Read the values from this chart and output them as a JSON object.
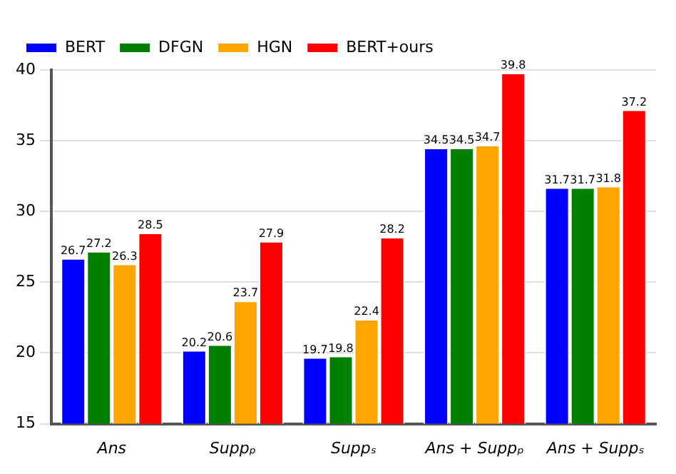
{
  "chart_data": {
    "type": "bar",
    "categories": [
      "Ans",
      "Suppₚ",
      "Suppₛ",
      "Ans + Suppₚ",
      "Ans + Suppₛ"
    ],
    "series": [
      {
        "name": "BERT",
        "color": "#0000ff",
        "values": [
          26.7,
          20.2,
          19.7,
          34.5,
          31.7
        ]
      },
      {
        "name": "DFGN",
        "color": "#008000",
        "values": [
          27.2,
          20.6,
          19.8,
          34.5,
          31.7
        ]
      },
      {
        "name": "HGN",
        "color": "#ffa500",
        "values": [
          26.3,
          23.7,
          22.4,
          34.7,
          31.8
        ]
      },
      {
        "name": "BERT+ours",
        "color": "#ff0000",
        "values": [
          28.5,
          27.9,
          28.2,
          39.8,
          37.2
        ]
      }
    ],
    "ylim": [
      15,
      40
    ],
    "yticks": [
      15,
      20,
      25,
      30,
      35,
      40
    ],
    "grid": "y",
    "legend": "top left",
    "data_labels": true
  }
}
